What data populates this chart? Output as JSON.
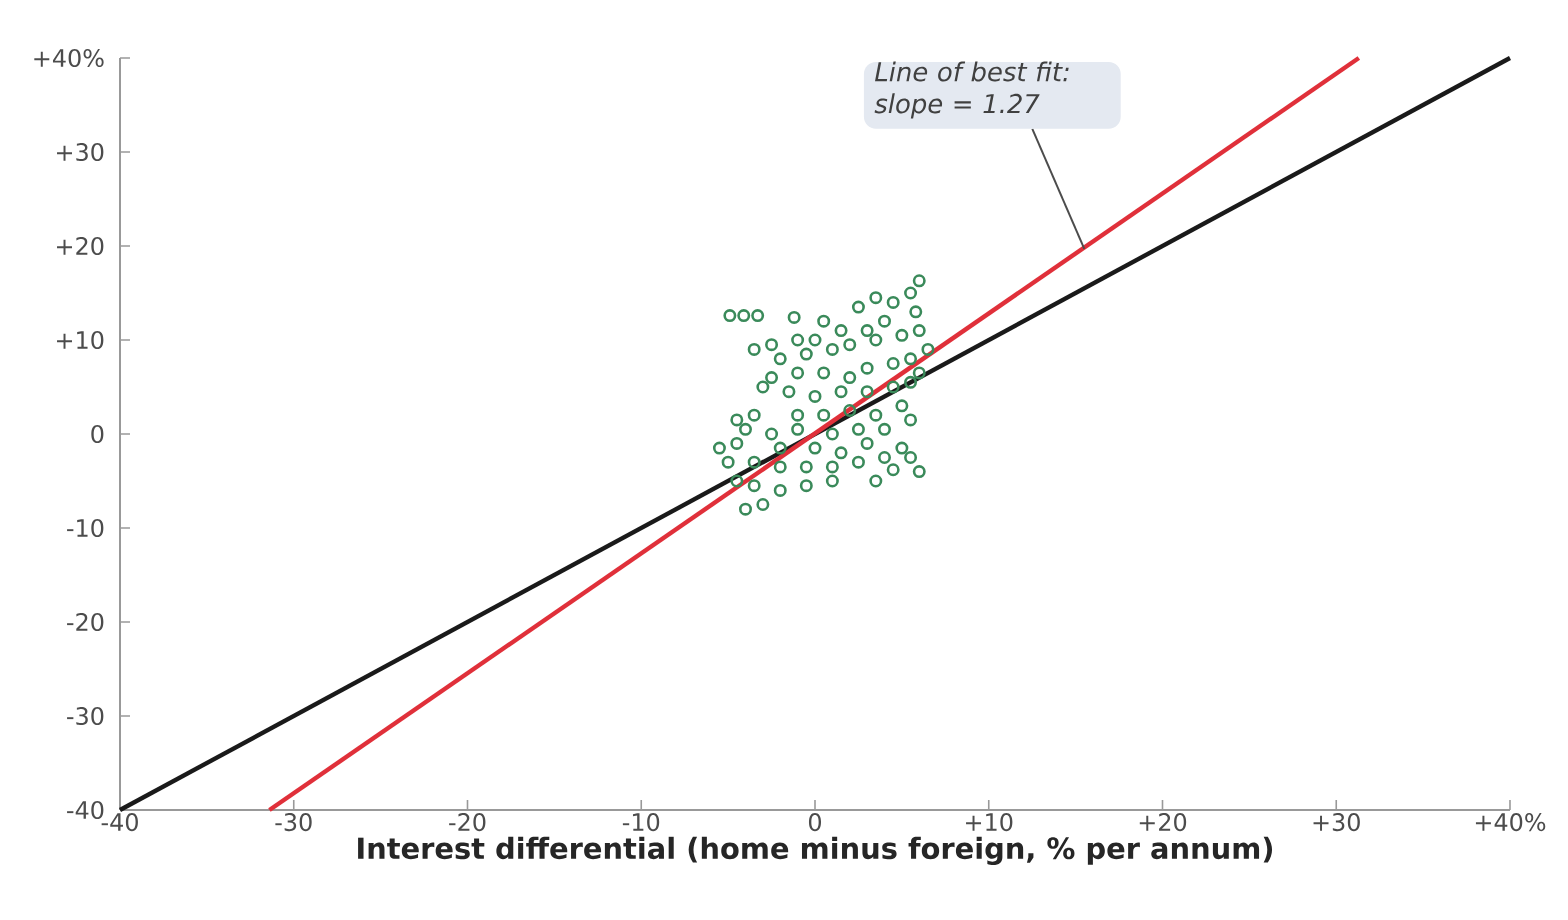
{
  "chart_data": {
    "type": "scatter",
    "xlabel": "Interest differential (home minus foreign, % per annum)",
    "xlim": [
      -40,
      40
    ],
    "ylim": [
      -40,
      40
    ],
    "xticks": [
      -40,
      -30,
      -20,
      -10,
      0,
      {
        "value": 10,
        "label": "+10"
      },
      {
        "value": 20,
        "label": "+20"
      },
      {
        "value": 30,
        "label": "+30"
      },
      {
        "value": 40,
        "label": "+40%"
      }
    ],
    "yticks": [
      -40,
      -30,
      -20,
      -10,
      0,
      {
        "value": 10,
        "label": "+10"
      },
      {
        "value": 20,
        "label": "+20"
      },
      {
        "value": 30,
        "label": "+30"
      },
      {
        "value": 40,
        "label": "+40%"
      }
    ],
    "grid": false,
    "annotations": [
      {
        "text": "Line of best fit: slope = 1.27",
        "x": 15.5,
        "y": 19.7
      }
    ],
    "series": [
      {
        "type": "line",
        "color": "#1a1a1a",
        "marker": "none",
        "x": [
          -40,
          40
        ],
        "values": [
          -40,
          40
        ]
      },
      {
        "type": "line",
        "color": "#e0303a",
        "marker": "none",
        "x": [
          -31.4,
          31.3
        ],
        "values": [
          -40,
          40
        ]
      },
      {
        "color": "#3a8a5a",
        "marker": "circle",
        "x": [
          -4.9,
          -4.1,
          -3.3,
          -1.2,
          0.5,
          2.5,
          3.5,
          4.5,
          5.5,
          6,
          5.8,
          4,
          3,
          1.5,
          0,
          -1,
          -2.5,
          -3.5,
          -2,
          -0.5,
          1,
          2,
          3.5,
          5,
          6,
          6.5,
          5.5,
          4.5,
          3,
          2,
          0.5,
          -1,
          -2.5,
          -3,
          -1.5,
          0,
          1.5,
          3,
          4.5,
          5.5,
          6,
          5,
          3.5,
          2,
          0.5,
          -1,
          -3.5,
          -4.5,
          -4,
          -2.5,
          -1,
          1,
          2.5,
          4,
          5.5,
          5,
          3,
          1.5,
          0,
          -2,
          -4.5,
          -5.5,
          -5,
          -3.5,
          -2,
          -0.5,
          1,
          2.5,
          4,
          5.5,
          6,
          3.5,
          1,
          -0.5,
          -2,
          -3.5,
          -4.5,
          -3,
          -4,
          4.5
        ],
        "values": [
          12.6,
          12.6,
          12.6,
          12.4,
          12,
          13.5,
          14.5,
          14,
          15,
          16.3,
          13,
          12,
          11,
          11,
          10,
          10,
          9.5,
          9,
          8,
          8.5,
          9,
          9.5,
          10,
          10.5,
          11,
          9,
          8,
          7.5,
          7,
          6,
          6.5,
          6.5,
          6,
          5,
          4.5,
          4,
          4.5,
          4.5,
          5,
          5.5,
          6.5,
          3,
          2,
          2.5,
          2,
          2,
          2,
          1.5,
          0.5,
          0,
          0.5,
          0,
          0.5,
          0.5,
          1.5,
          -1.5,
          -1,
          -2,
          -1.5,
          -1.5,
          -1,
          -1.5,
          -3,
          -3,
          -3.5,
          -3.5,
          -3.5,
          -3,
          -2.5,
          -2.5,
          -4,
          -5,
          -5,
          -5.5,
          -6,
          -5.5,
          -5,
          -7.5,
          -8,
          -3.8
        ]
      }
    ]
  }
}
